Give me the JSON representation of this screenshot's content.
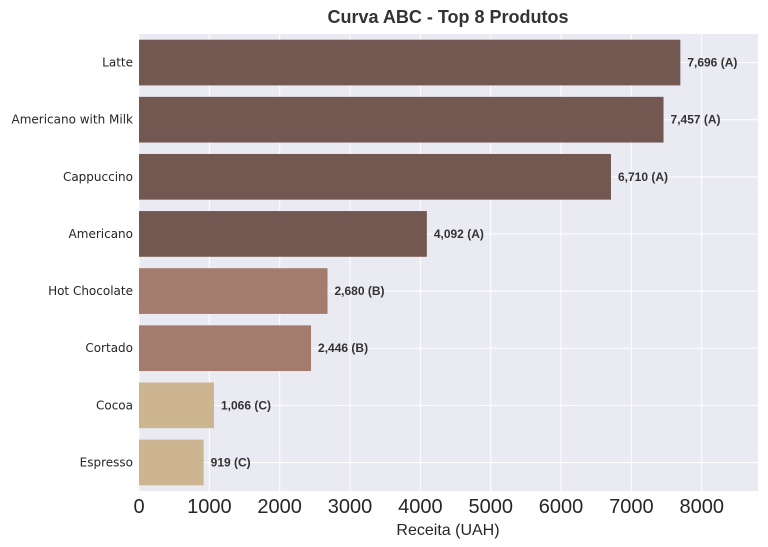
{
  "chart_data": {
    "type": "bar",
    "orientation": "horizontal",
    "title": "Curva ABC - Top 8 Produtos",
    "xlabel": "Receita (UAH)",
    "ylabel": "",
    "xlim": [
      0,
      8800
    ],
    "xticks": [
      0,
      1000,
      2000,
      3000,
      4000,
      5000,
      6000,
      7000,
      8000
    ],
    "grid": true,
    "categories": [
      "Latte",
      "Americano with Milk",
      "Cappuccino",
      "Americano",
      "Hot Chocolate",
      "Cortado",
      "Cocoa",
      "Espresso"
    ],
    "values": [
      7696,
      7457,
      6710,
      4092,
      2680,
      2446,
      1066,
      919
    ],
    "classes": [
      "A",
      "A",
      "A",
      "A",
      "B",
      "B",
      "C",
      "C"
    ],
    "data_labels": [
      "7,696 (A)",
      "7,457 (A)",
      "6,710 (A)",
      "4,092 (A)",
      "2,680 (B)",
      "2,446 (B)",
      "1,066 (C)",
      "919 (C)"
    ],
    "class_colors": {
      "A": "#725850",
      "B": "#a47c6e",
      "C": "#cdb592"
    },
    "background_color": "#eaeaf2"
  }
}
